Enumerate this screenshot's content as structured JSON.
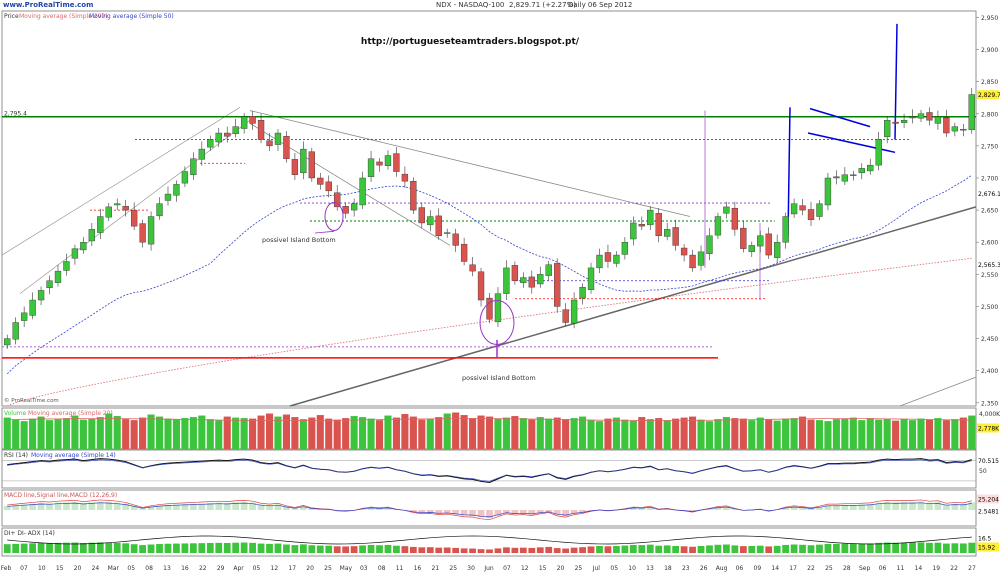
{
  "header": {
    "site": "www.ProRealTime.com",
    "instrument": "NDX - NASDAQ-100",
    "price_change": "2,829.71 (+2.27%)",
    "period": "Daily 06 Sep 2012"
  },
  "watermark": "http://portugueseteamtraders.blogspot.pt/",
  "credit": "© ProRealTime.com",
  "panels": {
    "price": {
      "label": "Price",
      "ma200": "Moving average (Simple 200)",
      "ma50": "Moving average (Simple 50)"
    },
    "volume": {
      "label": "Volume",
      "ma": "Moving average (Simple 20)"
    },
    "rsi": {
      "label": "RSI (14)",
      "ma": "Moving average (Simple 14)"
    },
    "macd": {
      "label": "MACD line,Signal line,MACD (12,26,9)"
    },
    "dmi": {
      "label": "DI+ DI- ADX (14)"
    }
  },
  "annotations": [
    "possivel Island Bottom",
    "possivel Island Bottom"
  ],
  "colors": {
    "up": "#3cc43c",
    "down": "#d9534f",
    "trend": "#555555",
    "level": "#008000",
    "support": "#ff0000",
    "flag": "#0000dd",
    "ma50": "#3344cc",
    "ma200": "#dd6666"
  },
  "chart_data": {
    "type": "candlestick",
    "y_axis": {
      "ticks": [
        "2,950",
        "2,900",
        "2,850",
        "2,800",
        "2,750",
        "2,700",
        "2,650",
        "2,600",
        "2,550",
        "2,500",
        "2,450",
        "2,400",
        "2,350"
      ]
    },
    "x_axis": {
      "ticks": [
        "Feb",
        "07",
        "10",
        "15",
        "20",
        "24",
        "Mar",
        "05",
        "08",
        "13",
        "16",
        "22",
        "29",
        "Apr",
        "05",
        "12",
        "17",
        "20",
        "25",
        "May",
        "03",
        "08",
        "11",
        "16",
        "21",
        "25",
        "30",
        "Jun",
        "07",
        "12",
        "15",
        "20",
        "25",
        "Jul",
        "05",
        "10",
        "13",
        "18",
        "23",
        "26",
        "Aug",
        "06",
        "09",
        "14",
        "17",
        "22",
        "25",
        "28",
        "Sep",
        "06",
        "11",
        "14",
        "19",
        "22",
        "27"
      ]
    },
    "price_labels": {
      "last": "2,829.71",
      "level": "2,795.4",
      "ma50_value": "2,676.1",
      "ma200_value": "2,565.3"
    },
    "volume_labels": [
      "4,000K",
      "2,778K"
    ],
    "rsi_labels": [
      "70.515",
      "50"
    ],
    "macd_labels": [
      "25.204",
      "2.5481"
    ],
    "dmi_labels": [
      "16.5",
      "15.92"
    ],
    "closes": [
      2450,
      2475,
      2490,
      2510,
      2525,
      2540,
      2555,
      2570,
      2590,
      2600,
      2620,
      2640,
      2655,
      2660,
      2650,
      2625,
      2600,
      2640,
      2660,
      2675,
      2690,
      2710,
      2730,
      2745,
      2760,
      2770,
      2765,
      2780,
      2795,
      2785,
      2760,
      2750,
      2770,
      2730,
      2705,
      2745,
      2700,
      2690,
      2680,
      2655,
      2645,
      2660,
      2700,
      2730,
      2720,
      2735,
      2710,
      2695,
      2650,
      2630,
      2640,
      2610,
      2615,
      2595,
      2570,
      2555,
      2510,
      2480,
      2520,
      2560,
      2540,
      2545,
      2530,
      2550,
      2565,
      2500,
      2475,
      2510,
      2530,
      2560,
      2580,
      2570,
      2580,
      2600,
      2630,
      2625,
      2650,
      2610,
      2620,
      2595,
      2580,
      2560,
      2585,
      2610,
      2640,
      2655,
      2620,
      2590,
      2595,
      2610,
      2580,
      2600,
      2640,
      2660,
      2650,
      2635,
      2660,
      2700,
      2700,
      2705,
      2705,
      2715,
      2720,
      2760,
      2790,
      2785,
      2790,
      2795,
      2800,
      2790,
      2795,
      2770,
      2780,
      2775,
      2830
    ],
    "volume": [
      62,
      58,
      55,
      60,
      64,
      57,
      59,
      61,
      66,
      58,
      60,
      63,
      70,
      65,
      59,
      57,
      62,
      68,
      64,
      60,
      58,
      61,
      63,
      66,
      59,
      57,
      64,
      62,
      61,
      60,
      66,
      70,
      64,
      68,
      63,
      59,
      62,
      67,
      60,
      58,
      61,
      65,
      63,
      60,
      57,
      66,
      62,
      69,
      64,
      58,
      60,
      63,
      70,
      72,
      67,
      61,
      66,
      64,
      60,
      62,
      65,
      61,
      58,
      63,
      60,
      62,
      59,
      61,
      64,
      57,
      55,
      60,
      62,
      58,
      56,
      63,
      59,
      61,
      57,
      60,
      62,
      64,
      58,
      55,
      59,
      63,
      61,
      60,
      57,
      62,
      58,
      56,
      60,
      61,
      64,
      58,
      57,
      55,
      59,
      60,
      62,
      57,
      61,
      58,
      60,
      56,
      59,
      57,
      60,
      58,
      61,
      57,
      59,
      62,
      66
    ],
    "rsi": [
      62,
      64,
      66,
      68,
      70,
      69,
      71,
      72,
      73,
      70,
      72,
      74,
      73,
      71,
      68,
      62,
      56,
      60,
      63,
      65,
      66,
      67,
      68,
      69,
      70,
      71,
      70,
      72,
      73,
      71,
      66,
      64,
      66,
      60,
      56,
      61,
      55,
      53,
      52,
      48,
      47,
      49,
      54,
      57,
      55,
      57,
      52,
      49,
      44,
      41,
      42,
      39,
      40,
      37,
      34,
      33,
      29,
      27,
      34,
      41,
      38,
      39,
      37,
      41,
      44,
      36,
      33,
      39,
      42,
      47,
      50,
      48,
      50,
      53,
      57,
      56,
      59,
      52,
      54,
      50,
      48,
      45,
      50,
      54,
      58,
      60,
      54,
      49,
      50,
      52,
      47,
      51,
      57,
      60,
      58,
      55,
      59,
      64,
      64,
      65,
      65,
      66,
      67,
      71,
      73,
      72,
      73,
      73,
      74,
      71,
      72,
      66,
      68,
      67,
      72
    ]
  }
}
